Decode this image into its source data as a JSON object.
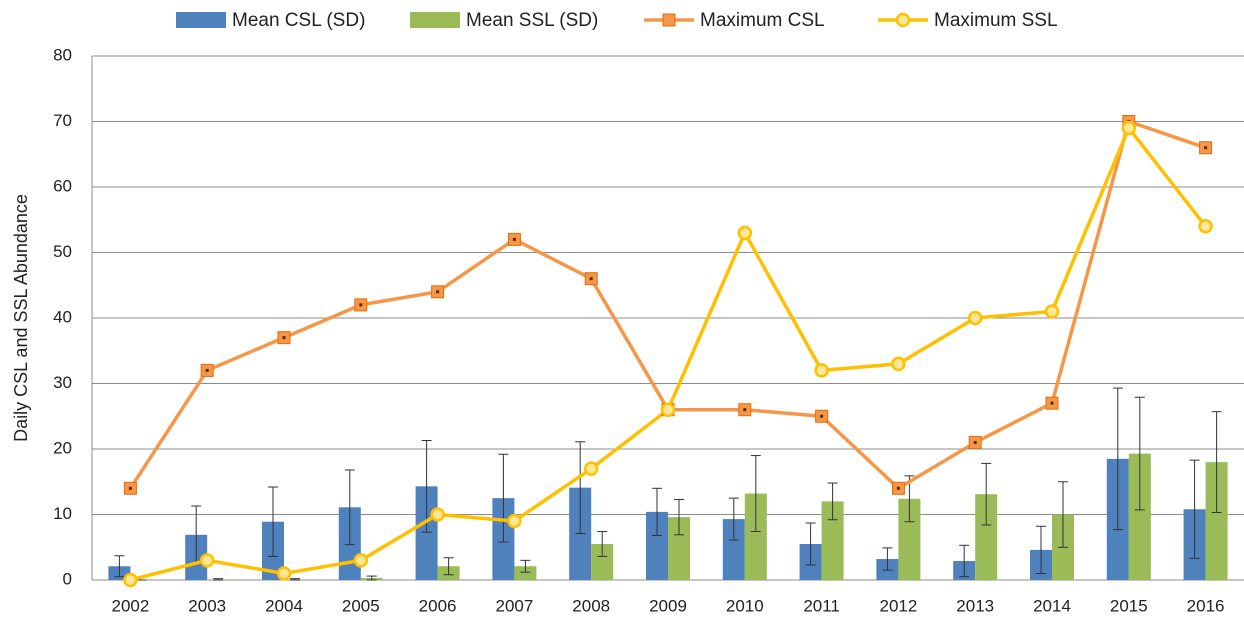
{
  "chart_data": {
    "type": "combo",
    "ylabel": "Daily CSL and SSL Abundance",
    "categories": [
      "2002",
      "2003",
      "2004",
      "2005",
      "2006",
      "2007",
      "2008",
      "2009",
      "2010",
      "2011",
      "2012",
      "2013",
      "2014",
      "2015",
      "2016"
    ],
    "ylim": [
      0,
      80
    ],
    "yticks": [
      0,
      10,
      20,
      30,
      40,
      50,
      60,
      70,
      80
    ],
    "grid": true,
    "legend": "top",
    "series": [
      {
        "name": "Mean CSL (SD)",
        "type": "bar",
        "color": "#4f81bd",
        "values": [
          2.1,
          6.9,
          8.9,
          11.1,
          14.3,
          12.5,
          14.1,
          10.4,
          9.3,
          5.5,
          3.2,
          2.9,
          4.6,
          18.5,
          10.8
        ],
        "errors": [
          1.6,
          4.4,
          5.3,
          5.7,
          7,
          6.7,
          7,
          3.6,
          3.2,
          3.2,
          1.7,
          2.4,
          3.6,
          10.8,
          7.5
        ]
      },
      {
        "name": "Mean SSL (SD)",
        "type": "bar",
        "color": "#9bbb59",
        "values": [
          0,
          0.1,
          0.1,
          0.3,
          2.1,
          2.1,
          5.5,
          9.6,
          13.2,
          12,
          12.4,
          13.1,
          10,
          19.3,
          18
        ],
        "errors": [
          0,
          0.1,
          0.1,
          0.3,
          1.3,
          0.9,
          1.9,
          2.7,
          5.8,
          2.8,
          3.5,
          4.7,
          5,
          8.6,
          7.7
        ]
      },
      {
        "name": "Maximum CSL",
        "type": "line",
        "marker": "square",
        "color": "#f79646",
        "values": [
          14,
          32,
          37,
          42,
          44,
          52,
          46,
          26,
          26,
          25,
          14,
          21,
          27,
          70,
          66
        ]
      },
      {
        "name": "Maximum SSL",
        "type": "line",
        "marker": "circle",
        "color": "#ffc000",
        "values": [
          0,
          3,
          1,
          3,
          10,
          9,
          17,
          26,
          53,
          32,
          33,
          40,
          41,
          69,
          54
        ]
      }
    ]
  }
}
